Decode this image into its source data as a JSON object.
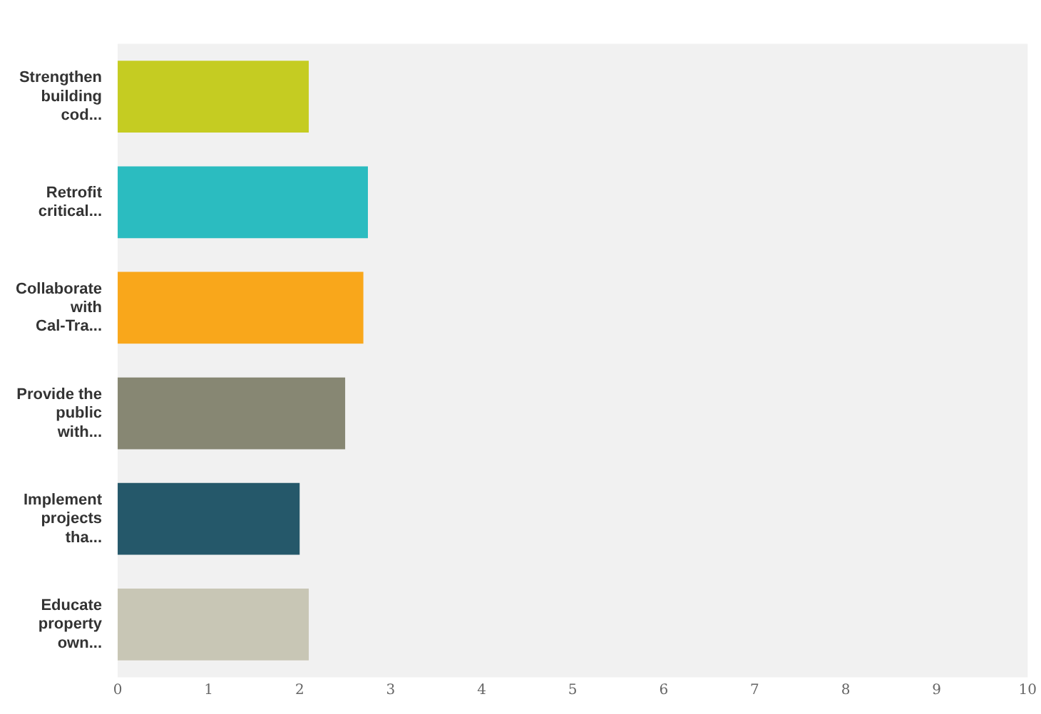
{
  "chart_data": {
    "type": "bar",
    "orientation": "horizontal",
    "categories": [
      "Strengthen building cod...",
      "Retrofit critical...",
      "Collaborate with Cal-Tra...",
      "Provide the public with...",
      "Implement projects tha...",
      "Educate property own..."
    ],
    "values": [
      2.1,
      2.75,
      2.7,
      2.5,
      2.0,
      2.1
    ],
    "colors": [
      "#c5cc22",
      "#2bbcc0",
      "#f9a71b",
      "#878773",
      "#25586a",
      "#c8c6b5"
    ],
    "xlim": [
      0,
      10
    ],
    "xticks": [
      0,
      1,
      2,
      3,
      4,
      5,
      6,
      7,
      8,
      9,
      10
    ],
    "grid": false,
    "legend": false
  }
}
